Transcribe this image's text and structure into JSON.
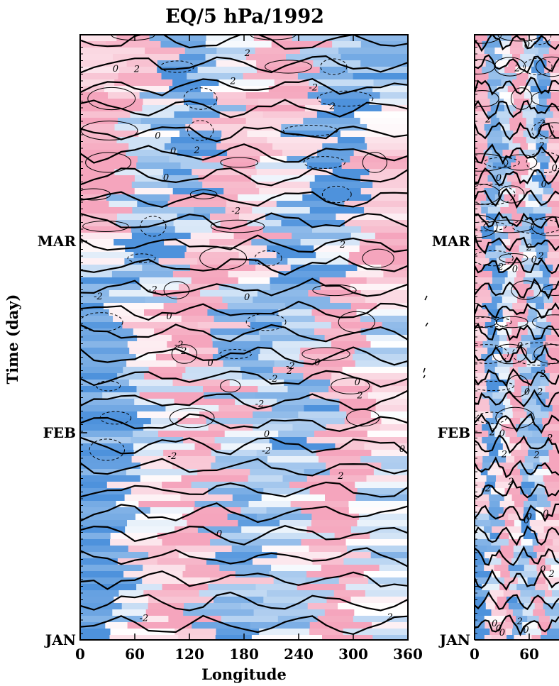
{
  "chart_data": [
    {
      "type": "heatmap",
      "title": "EQ/5 hPa/1992",
      "xlabel": "Longitude",
      "ylabel": "Time (day)",
      "x_ticks": [
        "0",
        "60",
        "120",
        "180",
        "240",
        "300",
        "360"
      ],
      "x_range": [
        0,
        360
      ],
      "y_ticks": [
        "JAN",
        "FEB",
        "MAR"
      ],
      "contour_levels": [
        "-2",
        "0",
        "2"
      ],
      "contour_label_text": [
        "0",
        "2",
        "-2"
      ],
      "colors": {
        "negative": "#2f7fd6",
        "neutral": "#ffffff",
        "positive": "#f07fa0"
      }
    },
    {
      "type": "heatmap",
      "title": "",
      "x_ticks": [
        "0",
        "60"
      ],
      "y_ticks": [
        "JAN",
        "FEB",
        "MAR"
      ],
      "contour_levels": [
        "-2",
        "0",
        "2"
      ],
      "contour_label_text": [
        "0",
        "2"
      ],
      "colors": {
        "negative": "#2f7fd6",
        "neutral": "#ffffff",
        "positive": "#f07fa0"
      }
    }
  ]
}
